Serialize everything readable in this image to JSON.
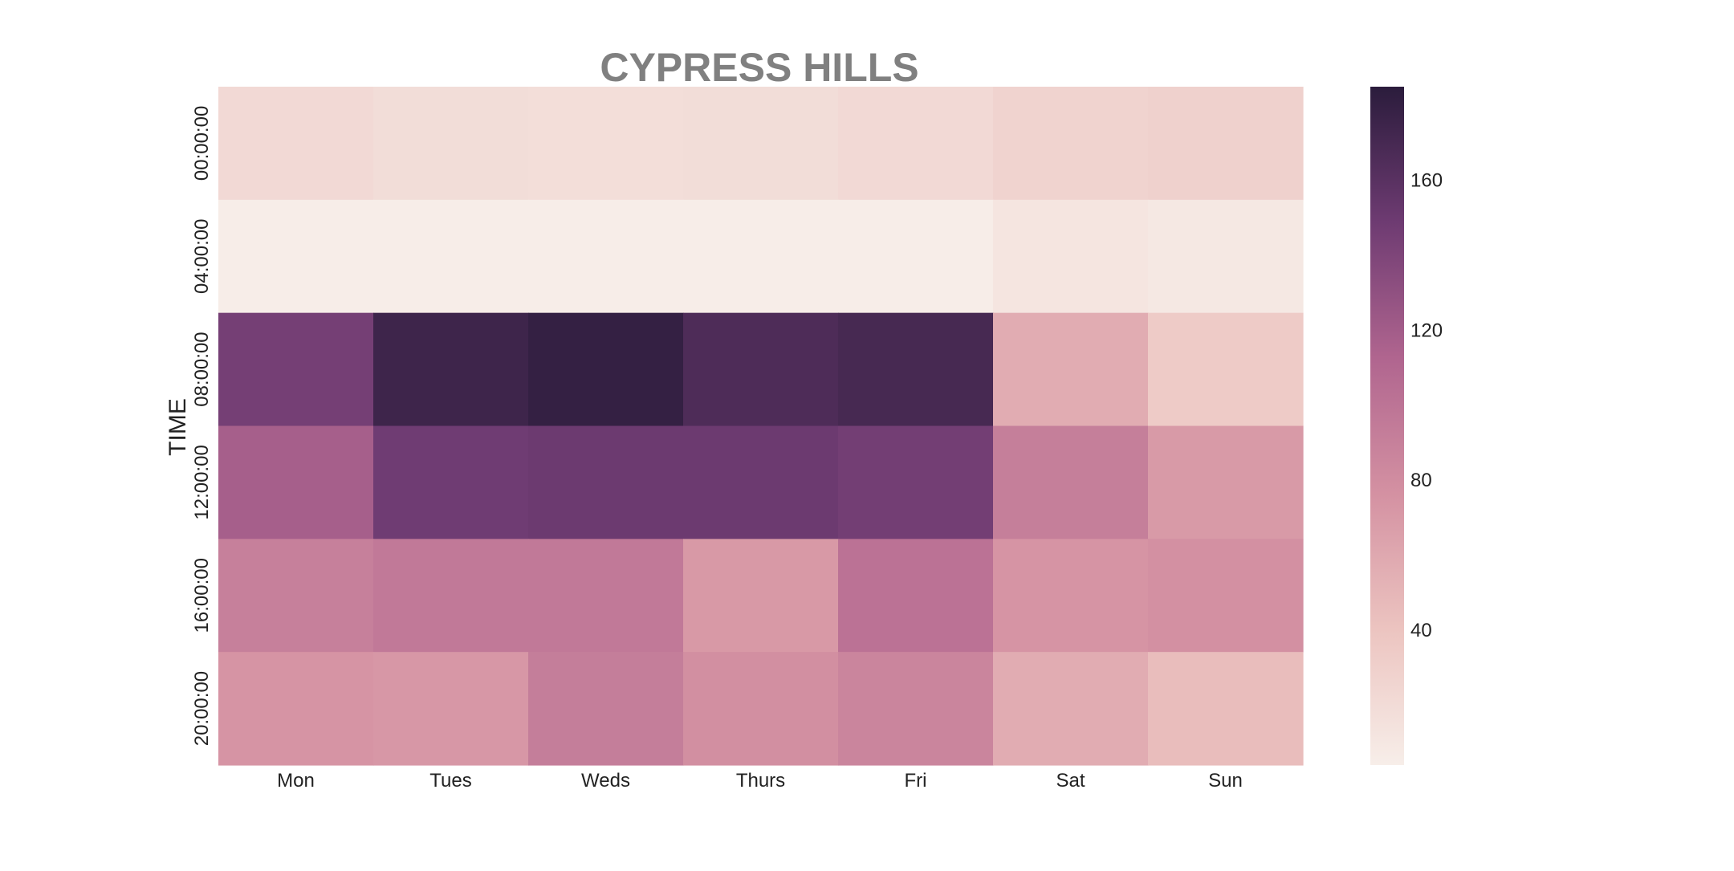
{
  "chart_data": {
    "type": "heatmap",
    "title": "CYPRESS HILLS",
    "xlabel": "",
    "ylabel": "TIME",
    "x_categories": [
      "Mon",
      "Tues",
      "Weds",
      "Thurs",
      "Fri",
      "Sat",
      "Sun"
    ],
    "y_categories": [
      "00:00:00",
      "04:00:00",
      "08:00:00",
      "12:00:00",
      "16:00:00",
      "20:00:00"
    ],
    "values": [
      [
        22,
        19,
        18,
        19,
        22,
        27,
        29
      ],
      [
        5,
        5,
        5,
        5,
        5,
        12,
        9
      ],
      [
        145,
        175,
        180,
        166,
        170,
        57,
        34
      ],
      [
        118,
        148,
        150,
        150,
        146,
        91,
        70
      ],
      [
        90,
        96,
        96,
        71,
        102,
        74,
        77
      ],
      [
        74,
        72,
        92,
        78,
        86,
        57,
        45
      ]
    ],
    "colorbar": {
      "min": 4,
      "max": 185,
      "ticks": [
        40,
        80,
        120,
        160
      ]
    },
    "colormap": [
      "#f7eee9",
      "#ecc4c0",
      "#d491a2",
      "#b0658f",
      "#6e3b72",
      "#2b1c3c"
    ]
  }
}
